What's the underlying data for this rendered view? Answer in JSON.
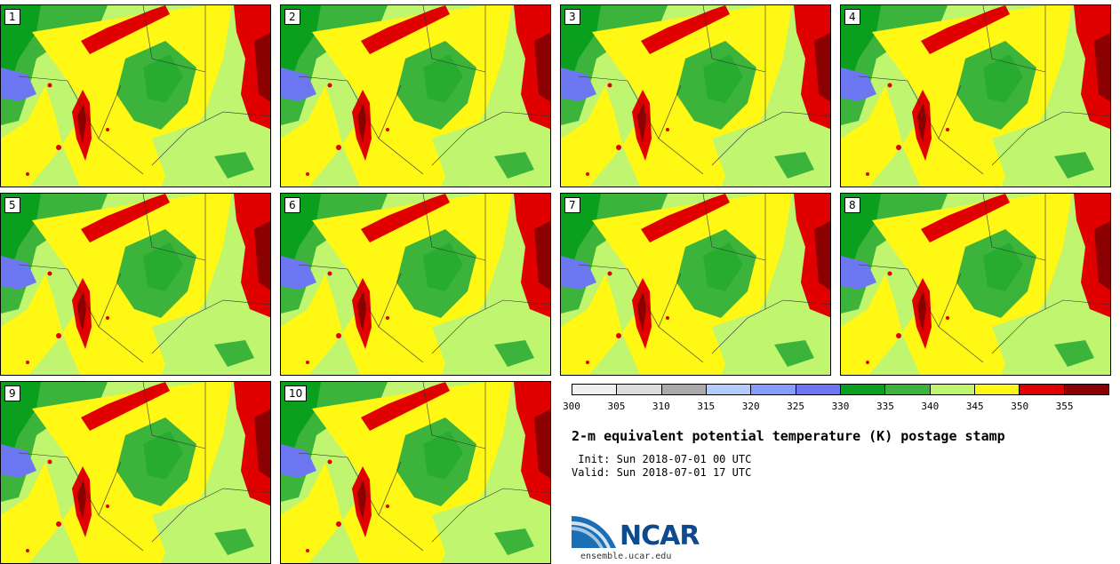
{
  "panels": [
    "1",
    "2",
    "3",
    "4",
    "5",
    "6",
    "7",
    "8",
    "9",
    "10"
  ],
  "colorbar": {
    "colors": [
      "#f0f0f0",
      "#dcdcdc",
      "#aaaaaa",
      "#b3cbff",
      "#869dff",
      "#6d77f2",
      "#0aa01e",
      "#3cb43c",
      "#bff56f",
      "#fff714",
      "#e10000",
      "#8b0000"
    ],
    "ticks": [
      "300",
      "305",
      "310",
      "315",
      "320",
      "325",
      "330",
      "335",
      "340",
      "345",
      "350",
      "355"
    ]
  },
  "title": "2-m equivalent potential temperature (K) postage stamp",
  "init_line": " Init: Sun 2018-07-01 00 UTC",
  "valid_line": "Valid: Sun 2018-07-01 17 UTC",
  "logo": {
    "text": "NCAR",
    "url": "ensemble.ucar.edu"
  }
}
